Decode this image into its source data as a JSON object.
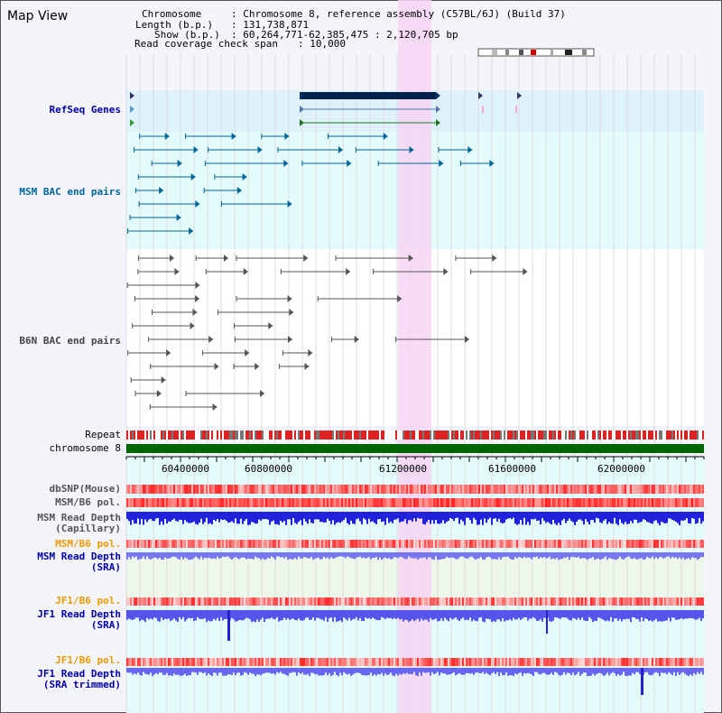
{
  "app": {
    "title": "Map View"
  },
  "header": {
    "chromosome_key": "Chromosome",
    "chromosome_val": ": Chromosome 8, reference assembly (C57BL/6J) (Build 37)",
    "length_key": "Length (b.p.)",
    "length_val": ": 131,738,871",
    "show_key": "Show (b.p.)",
    "show_val": ": 60,264,771-62,385,475 : 2,120,705 bp",
    "coverage_key": "Read coverage check span",
    "coverage_val": ": 10,000"
  },
  "tracks": {
    "refseq": "RefSeq Genes",
    "msm_bac": "MSM BAC end pairs",
    "b6n_bac": "B6N BAC end pairs",
    "repeat": "Repeat",
    "chromosome": "chromosome 8",
    "dbsnp": "dbSNP(Mouse)",
    "msm_b6_pol": "MSM/B6 pol.",
    "msm_read_depth_cap_1": "MSM Read Depth",
    "msm_read_depth_cap_2": "(Capillary)",
    "msm_b6_pol_2": "MSM/B6 pol.",
    "msm_read_depth_sra_1": "MSM Read Depth",
    "msm_read_depth_sra_2": "(SRA)",
    "jf1_b6_pol": "JF1/B6 pol.",
    "jf1_read_depth_sra_1": "JF1 Read Depth",
    "jf1_read_depth_sra_2": "(SRA)",
    "jf1_b6_pol_2": "JF1/B6 pol.",
    "jf1_read_depth_trim_1": "JF1 Read Depth",
    "jf1_read_depth_trim_2": "(SRA trimmed)"
  },
  "axis": {
    "ticks": [
      "60400000",
      "60800000",
      "61200000",
      "61600000",
      "62000000"
    ]
  },
  "colors": {
    "refseq_bg": "#dff1fb",
    "track_bg": "#e4fbfb",
    "highlight": "#f7d5f3",
    "msm_label": "#006699",
    "b6n_label": "#444444",
    "blue_label": "#0000aa",
    "orange_label": "#ee9900",
    "chrom_green": "#006600"
  }
}
